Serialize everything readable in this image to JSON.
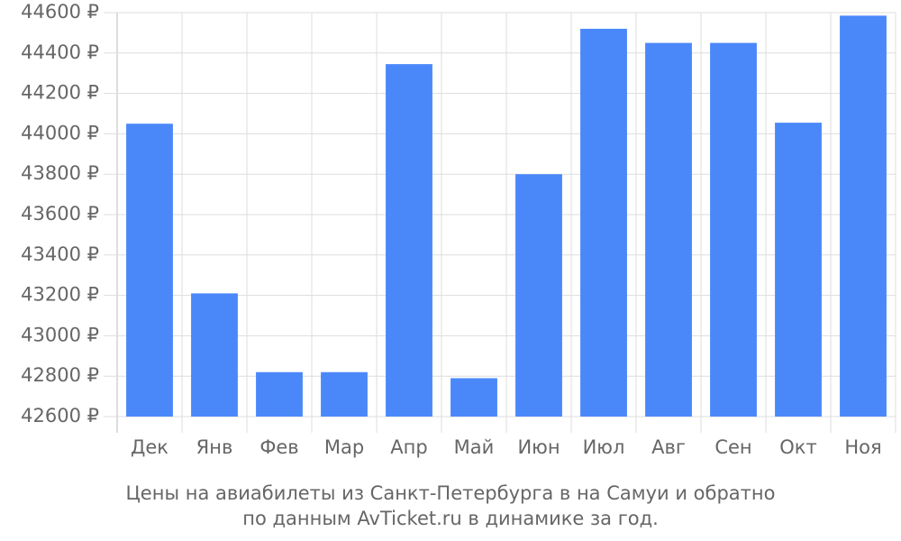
{
  "chart_data": {
    "type": "bar",
    "title": [
      "Цены на авиабилеты из Санкт-Петербурга в на Самуи и обратно",
      "по данным AvTicket.ru в динамике за год."
    ],
    "categories": [
      "Дек",
      "Янв",
      "Фев",
      "Мар",
      "Апр",
      "Май",
      "Июн",
      "Июл",
      "Авг",
      "Сен",
      "Окт",
      "Ноя"
    ],
    "values": [
      44050,
      43210,
      42820,
      42820,
      44345,
      42790,
      43800,
      44520,
      44450,
      44450,
      44055,
      44585
    ],
    "color": "#4a88fa",
    "ylim": [
      42600,
      44600
    ],
    "yticks": [
      {
        "value": 42600,
        "label": "42600 ₽"
      },
      {
        "value": 42800,
        "label": "42800 ₽"
      },
      {
        "value": 43000,
        "label": "43000 ₽"
      },
      {
        "value": 43200,
        "label": "43200 ₽"
      },
      {
        "value": 43400,
        "label": "43400 ₽"
      },
      {
        "value": 43600,
        "label": "43600 ₽"
      },
      {
        "value": 43800,
        "label": "43800 ₽"
      },
      {
        "value": 44000,
        "label": "44000 ₽"
      },
      {
        "value": 44200,
        "label": "44200 ₽"
      },
      {
        "value": 44400,
        "label": "44400 ₽"
      },
      {
        "value": 44600,
        "label": "44600 ₽"
      }
    ],
    "grid": true
  }
}
